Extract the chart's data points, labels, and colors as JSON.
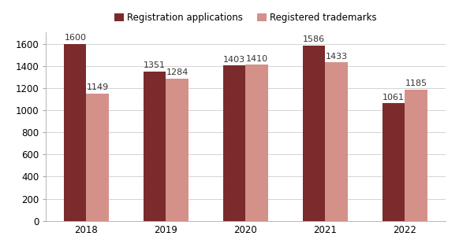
{
  "years": [
    "2018",
    "2019",
    "2020",
    "2021",
    "2022"
  ],
  "registration_applications": [
    1600,
    1351,
    1403,
    1586,
    1061
  ],
  "registered_trademarks": [
    1149,
    1284,
    1410,
    1433,
    1185
  ],
  "bar_color_applications": "#7B2B2B",
  "bar_color_trademarks": "#D4918A",
  "legend_label_applications": "Registration applications",
  "legend_label_trademarks": "Registered trademarks",
  "ylim": [
    0,
    1700
  ],
  "yticks": [
    0,
    200,
    400,
    600,
    800,
    1000,
    1200,
    1400,
    1600
  ],
  "bar_width": 0.28,
  "background_color": "#FFFFFF",
  "label_fontsize": 8,
  "legend_fontsize": 8.5,
  "tick_fontsize": 8.5,
  "grid_color": "#CCCCCC",
  "spine_color": "#AAAAAA"
}
